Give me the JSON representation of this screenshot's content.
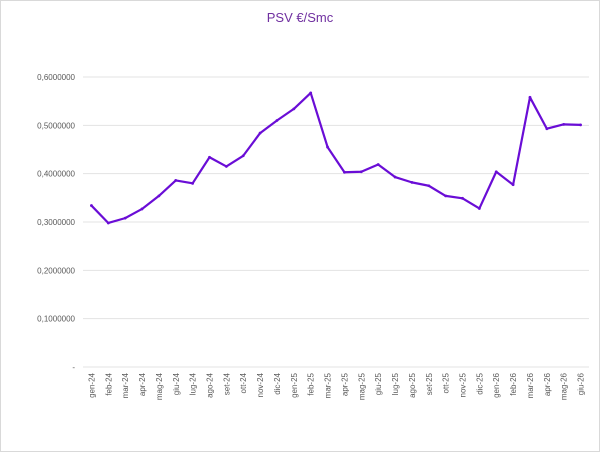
{
  "chart_data": {
    "type": "line",
    "title": "PSV €/Smc",
    "xlabel": "",
    "ylabel": "",
    "ylim": [
      0,
      0.6
    ],
    "grid": "horizontal",
    "legend": "none",
    "y_ticks": [
      {
        "value": 0,
        "label": "-"
      },
      {
        "value": 0.1,
        "label": "0,1000000"
      },
      {
        "value": 0.2,
        "label": "0,2000000"
      },
      {
        "value": 0.3,
        "label": "0,3000000"
      },
      {
        "value": 0.4,
        "label": "0,4000000"
      },
      {
        "value": 0.5,
        "label": "0,5000000"
      },
      {
        "value": 0.6,
        "label": "0,6000000"
      }
    ],
    "categories": [
      "gen-24",
      "feb-24",
      "mar-24",
      "apr-24",
      "mag-24",
      "giu-24",
      "lug-24",
      "ago-24",
      "set-24",
      "ott-24",
      "nov-24",
      "dic-24",
      "gen-25",
      "feb-25",
      "mar-25",
      "apr-25",
      "mag-25",
      "giu-25",
      "lug-25",
      "ago-25",
      "set-25",
      "ott-25",
      "nov-25",
      "dic-25",
      "gen-26",
      "feb-26",
      "mar-26",
      "apr-26",
      "mag-26",
      "giu-26"
    ],
    "series": [
      {
        "color": "#6a0dd6",
        "values": [
          0.334,
          0.298,
          0.308,
          0.327,
          0.354,
          0.386,
          0.38,
          0.434,
          0.415,
          0.437,
          0.484,
          0.51,
          0.534,
          0.567,
          0.455,
          0.403,
          0.404,
          0.419,
          0.393,
          0.382,
          0.375,
          0.354,
          0.349,
          0.328,
          0.404,
          0.377,
          0.558,
          0.493,
          0.502,
          0.501
        ]
      }
    ]
  }
}
